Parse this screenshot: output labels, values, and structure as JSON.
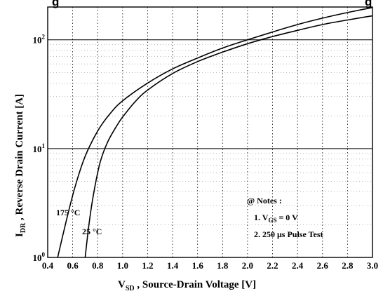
{
  "chart_data": {
    "type": "line",
    "title_fragment_left": "g",
    "title_fragment_right": "g",
    "xlabel": "V",
    "xlabel_sub": "SD",
    "xlabel_rest": " , Source-Drain Voltage   [V]",
    "ylabel": "I",
    "ylabel_sub": "DR",
    "ylabel_rest": " , Reverse Drain Current   [A]",
    "xlim": [
      0.4,
      3.0
    ],
    "ylim": [
      1,
      200
    ],
    "y_scale": "log",
    "x_ticks": [
      "0.4",
      "0.6",
      "0.8",
      "1.0",
      "1.2",
      "1.4",
      "1.6",
      "1.8",
      "2.0",
      "2.2",
      "2.4",
      "2.6",
      "2.8",
      "3.0"
    ],
    "x_tick_values": [
      0.4,
      0.6,
      0.8,
      1.0,
      1.2,
      1.4,
      1.6,
      1.8,
      2.0,
      2.2,
      2.4,
      2.6,
      2.8,
      3.0
    ],
    "y_ticks": [
      {
        "value": 1,
        "base": "10",
        "exp": "0"
      },
      {
        "value": 10,
        "base": "10",
        "exp": "1"
      },
      {
        "value": 100,
        "base": "10",
        "exp": "2"
      }
    ],
    "grid": true,
    "series": [
      {
        "name": "175 °C",
        "label_main": "175",
        "label_unit": "°C",
        "x": [
          0.48,
          0.55,
          0.62,
          0.7,
          0.8,
          0.9,
          1.0,
          1.2,
          1.4,
          1.6,
          1.8,
          2.0,
          2.2,
          2.4,
          2.6,
          2.8,
          3.0
        ],
        "y": [
          1.0,
          2.2,
          4.5,
          8.5,
          14.5,
          21.0,
          27.5,
          40.0,
          54.0,
          68.0,
          84.0,
          100.0,
          118.0,
          138.0,
          158.0,
          178.0,
          198.0
        ]
      },
      {
        "name": "25 °C",
        "label_main": "25",
        "label_unit": "°C",
        "x": [
          0.7,
          0.73,
          0.77,
          0.82,
          0.88,
          0.95,
          1.0,
          1.1,
          1.2,
          1.4,
          1.6,
          1.8,
          2.0,
          2.2,
          2.4,
          2.6,
          2.8,
          3.0
        ],
        "y": [
          1.0,
          2.0,
          4.0,
          7.5,
          11.5,
          16.0,
          19.5,
          27.0,
          34.5,
          49.0,
          63.0,
          77.0,
          92.0,
          107.0,
          122.0,
          138.0,
          152.0,
          166.0
        ]
      }
    ],
    "notes": {
      "heading": "@ Notes :",
      "line1_prefix": "1. V",
      "line1_sub": "GS",
      "line1_suffix": " = 0 V",
      "line2": "2. 250 μs Pulse Test"
    }
  }
}
